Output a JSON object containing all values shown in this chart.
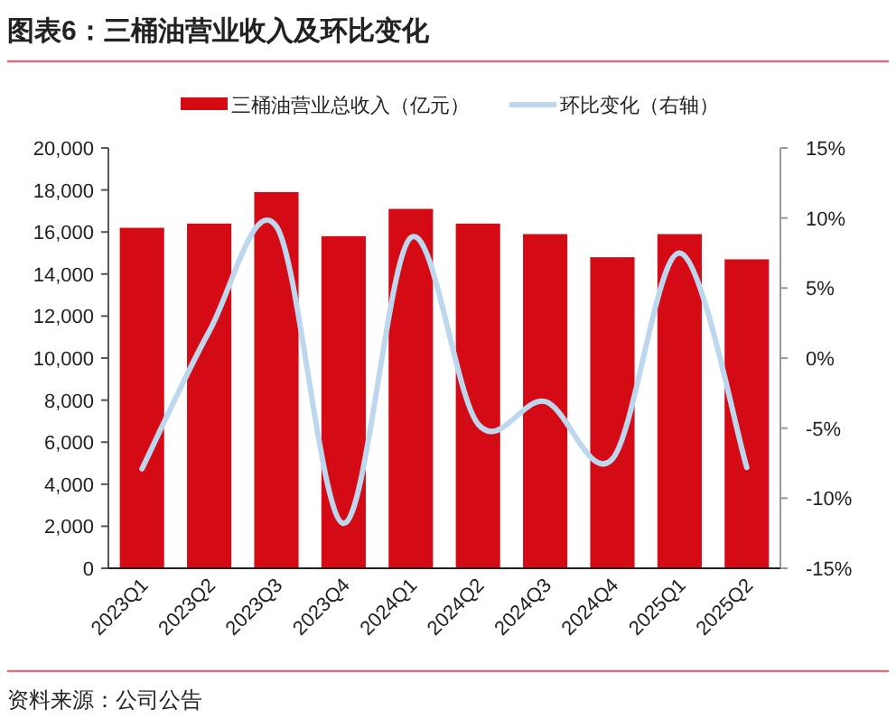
{
  "chart_data": {
    "type": "bar",
    "title": "图表6：三桶油营业收入及环比变化",
    "categories": [
      "2023Q1",
      "2023Q2",
      "2023Q3",
      "2023Q4",
      "2024Q1",
      "2024Q2",
      "2024Q3",
      "2024Q4",
      "2025Q1",
      "2025Q2"
    ],
    "series": [
      {
        "name": "三桶油营业总收入（亿元）",
        "color": "#d40b14",
        "values": [
          16200,
          16400,
          17900,
          15800,
          17100,
          16400,
          15900,
          14800,
          15900,
          14700
        ]
      },
      {
        "name": "环比变化（右轴）",
        "type": "line",
        "axis": "y2",
        "color": "#bdd7ee",
        "values": [
          -7.9,
          1.9,
          9.4,
          -11.8,
          8.6,
          -4.7,
          -3.1,
          -7.2,
          7.5,
          -7.8
        ]
      }
    ],
    "ylim": [
      0,
      20000
    ],
    "yticks": [
      0,
      {
        "value": 2000,
        "label": "2,000"
      },
      {
        "value": 4000,
        "label": "4,000"
      },
      {
        "value": 6000,
        "label": "6,000"
      },
      {
        "value": 8000,
        "label": "8,000"
      },
      {
        "value": 10000,
        "label": "10,000"
      },
      {
        "value": 12000,
        "label": "12,000"
      },
      {
        "value": 14000,
        "label": "14,000"
      },
      {
        "value": 16000,
        "label": "16,000"
      },
      {
        "value": 18000,
        "label": "18,000"
      },
      {
        "value": 20000,
        "label": "20,000"
      }
    ],
    "y2lim": [
      -15,
      15
    ],
    "y2ticks": [
      {
        "value": -15,
        "label": "-15%"
      },
      {
        "value": -10,
        "label": "-10%"
      },
      {
        "value": -5,
        "label": "-5%"
      },
      {
        "value": 0,
        "label": "0%"
      },
      {
        "value": 5,
        "label": "5%"
      },
      {
        "value": 10,
        "label": "10%"
      },
      {
        "value": 15,
        "label": "15%"
      }
    ],
    "legend": "top",
    "annotations": [
      "资料来源：公司公告"
    ]
  }
}
